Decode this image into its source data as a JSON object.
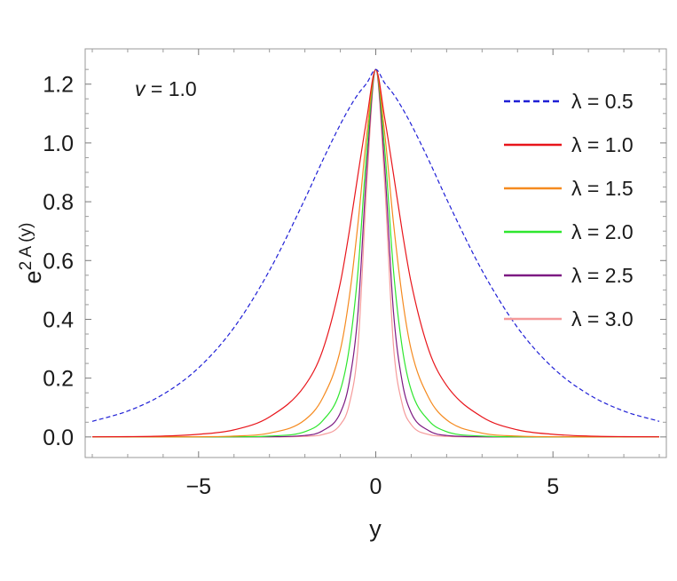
{
  "chart_data": {
    "type": "line",
    "annotation": {
      "var": "v",
      "text": " = 1.0"
    },
    "xlabel": "y",
    "ylabel": {
      "base": "e",
      "sup": "2 A (y)"
    },
    "xlim": [
      -8.2,
      8.2
    ],
    "ylim": [
      -0.07,
      1.32
    ],
    "x_ticks": [
      {
        "value": -5,
        "label": "−5"
      },
      {
        "value": 0,
        "label": "0"
      },
      {
        "value": 5,
        "label": "5"
      }
    ],
    "y_ticks": [
      {
        "value": 0.0,
        "label": "0.0"
      },
      {
        "value": 0.2,
        "label": "0.2"
      },
      {
        "value": 0.4,
        "label": "0.4"
      },
      {
        "value": 0.6,
        "label": "0.6"
      },
      {
        "value": 0.8,
        "label": "0.8"
      },
      {
        "value": 1.0,
        "label": "1.0"
      },
      {
        "value": 1.2,
        "label": "1.2"
      }
    ],
    "grid": false,
    "legend_position": "top-right",
    "peak": 1.25,
    "x_samples": [
      -8,
      -7,
      -6,
      -5,
      -4,
      -3,
      -2,
      -1.5,
      -1,
      -0.75,
      -0.5,
      -0.25,
      0,
      0.25,
      0.5,
      0.75,
      1,
      1.5,
      2,
      3,
      4,
      5,
      6,
      7,
      8
    ],
    "series": [
      {
        "name": "λ = 0.5",
        "color": "#1f1fd6",
        "dashed": true,
        "values": [
          0.053,
          0.088,
          0.145,
          0.235,
          0.372,
          0.566,
          0.809,
          0.94,
          1.063,
          1.118,
          1.166,
          1.204,
          1.25,
          1.204,
          1.166,
          1.118,
          1.063,
          0.94,
          0.809,
          0.566,
          0.372,
          0.235,
          0.145,
          0.088,
          0.053
        ]
      },
      {
        "name": "λ = 1.0",
        "color": "#e8151b",
        "dashed": false,
        "values": [
          0.0004,
          0.001,
          0.003,
          0.009,
          0.024,
          0.068,
          0.175,
          0.294,
          0.524,
          0.697,
          0.894,
          1.086,
          1.25,
          1.086,
          0.894,
          0.697,
          0.524,
          0.294,
          0.175,
          0.068,
          0.024,
          0.009,
          0.003,
          0.001,
          0.0004
        ]
      },
      {
        "name": "λ = 1.5",
        "color": "#f58a1f",
        "dashed": false,
        "values": [
          0.0,
          0.0,
          0.0002,
          0.0007,
          0.003,
          0.013,
          0.058,
          0.132,
          0.296,
          0.473,
          0.728,
          1.035,
          1.25,
          1.035,
          0.728,
          0.473,
          0.296,
          0.132,
          0.058,
          0.013,
          0.003,
          0.0007,
          0.0002,
          0.0,
          0.0
        ]
      },
      {
        "name": "λ = 2.0",
        "color": "#2ee62e",
        "dashed": false,
        "values": [
          0.0,
          0.0,
          0.0,
          0.0,
          0.0004,
          0.003,
          0.018,
          0.055,
          0.159,
          0.301,
          0.566,
          0.982,
          1.25,
          0.982,
          0.566,
          0.301,
          0.159,
          0.055,
          0.018,
          0.003,
          0.0004,
          0.0,
          0.0,
          0.0,
          0.0
        ]
      },
      {
        "name": "λ = 2.5",
        "color": "#7d1a82",
        "dashed": false,
        "values": [
          0.0,
          0.0,
          0.0,
          0.0,
          0.0,
          0.0006,
          0.005,
          0.021,
          0.082,
          0.185,
          0.425,
          0.923,
          1.25,
          0.923,
          0.425,
          0.185,
          0.082,
          0.021,
          0.005,
          0.0006,
          0.0,
          0.0,
          0.0,
          0.0,
          0.0
        ]
      },
      {
        "name": "λ = 3.0",
        "color": "#f59a9a",
        "dashed": false,
        "values": [
          0.0,
          0.0,
          0.0,
          0.0,
          0.0,
          0.0001,
          0.002,
          0.008,
          0.042,
          0.11,
          0.31,
          0.866,
          1.25,
          0.866,
          0.31,
          0.11,
          0.042,
          0.008,
          0.002,
          0.0001,
          0.0,
          0.0,
          0.0,
          0.0,
          0.0
        ]
      }
    ]
  }
}
